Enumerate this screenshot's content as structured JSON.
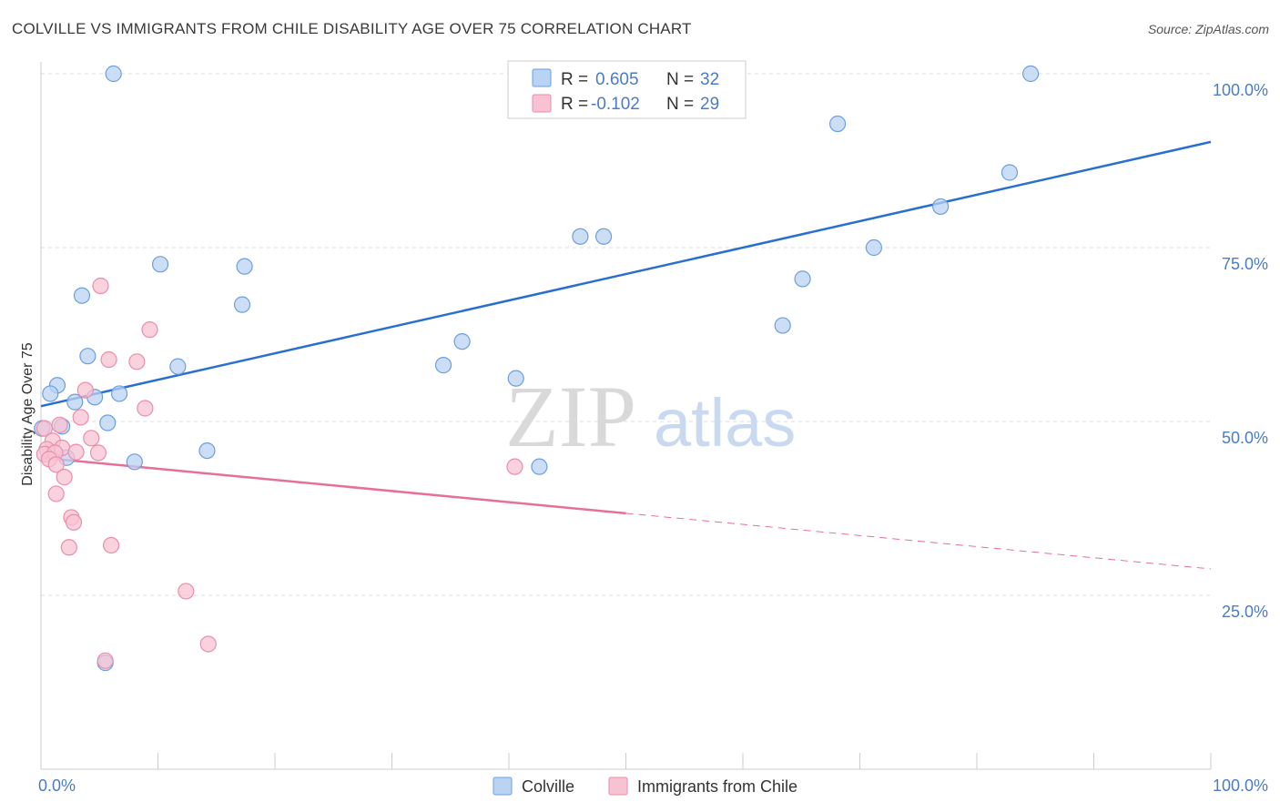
{
  "header": {
    "title": "COLVILLE VS IMMIGRANTS FROM CHILE DISABILITY AGE OVER 75 CORRELATION CHART",
    "source": "Source: ZipAtlas.com"
  },
  "watermark": {
    "zip": "ZIP",
    "atlas": "atlas"
  },
  "legend": {
    "rows": [
      {
        "r_label": "R =",
        "r_value": "0.605",
        "n_label": "N =",
        "n_value": "32"
      },
      {
        "r_label": "R =",
        "r_value": "-0.102",
        "n_label": "N =",
        "n_value": "29"
      }
    ]
  },
  "colors": {
    "blue_fill": "#b9d3f3",
    "blue_stroke": "#6c9fdc",
    "blue_line": "#2a6fcf",
    "pink_fill": "#f7c3d3",
    "pink_stroke": "#ea8eab",
    "pink_line": "#e5709a",
    "label_blue": "#4a7cc7",
    "grid": "#dddddd"
  },
  "chart_data": {
    "type": "scatter",
    "title": "COLVILLE VS IMMIGRANTS FROM CHILE DISABILITY AGE OVER 75 CORRELATION CHART",
    "xlabel": "",
    "ylabel": "Disability Age Over 75",
    "xlim": [
      0,
      100
    ],
    "ylim": [
      0,
      102.5
    ],
    "x_tick_labels": [
      "0.0%",
      "100.0%"
    ],
    "y_ticks": [
      25,
      50,
      75,
      100
    ],
    "y_tick_labels": [
      "25.0%",
      "50.0%",
      "75.0%",
      "100.0%"
    ],
    "grid": true,
    "legend_position": "top-center",
    "series": [
      {
        "name": "Colville",
        "color": "#b9d3f3",
        "points": [
          [
            6.2,
            100
          ],
          [
            84.6,
            100
          ],
          [
            68.1,
            92.8
          ],
          [
            82.8,
            85.8
          ],
          [
            76.9,
            80.9
          ],
          [
            46.1,
            76.6
          ],
          [
            48.1,
            76.6
          ],
          [
            71.2,
            75.0
          ],
          [
            10.2,
            72.6
          ],
          [
            17.4,
            72.3
          ],
          [
            65.1,
            70.5
          ],
          [
            3.5,
            68.1
          ],
          [
            17.2,
            66.8
          ],
          [
            63.4,
            63.8
          ],
          [
            36.0,
            61.5
          ],
          [
            4.0,
            59.4
          ],
          [
            11.7,
            57.9
          ],
          [
            34.4,
            58.1
          ],
          [
            40.6,
            56.2
          ],
          [
            1.4,
            55.2
          ],
          [
            0.8,
            54.0
          ],
          [
            6.7,
            54.0
          ],
          [
            4.6,
            53.5
          ],
          [
            2.9,
            52.8
          ],
          [
            5.7,
            49.8
          ],
          [
            0.1,
            49.0
          ],
          [
            1.8,
            49.3
          ],
          [
            14.2,
            45.8
          ],
          [
            2.2,
            44.8
          ],
          [
            8.0,
            44.2
          ],
          [
            42.6,
            43.5
          ],
          [
            5.5,
            15.3
          ]
        ]
      },
      {
        "name": "Immigrants from Chile",
        "color": "#f7c3d3",
        "points": [
          [
            5.1,
            69.5
          ],
          [
            9.3,
            63.2
          ],
          [
            5.8,
            58.9
          ],
          [
            8.2,
            58.6
          ],
          [
            3.8,
            54.5
          ],
          [
            8.9,
            51.9
          ],
          [
            3.4,
            50.6
          ],
          [
            1.6,
            49.5
          ],
          [
            0.3,
            49.0
          ],
          [
            1.0,
            47.2
          ],
          [
            4.3,
            47.6
          ],
          [
            1.8,
            46.2
          ],
          [
            0.5,
            46.0
          ],
          [
            0.3,
            45.3
          ],
          [
            1.2,
            45.5
          ],
          [
            3.0,
            45.6
          ],
          [
            4.9,
            45.5
          ],
          [
            0.7,
            44.6
          ],
          [
            1.3,
            43.8
          ],
          [
            40.5,
            43.5
          ],
          [
            2.0,
            42.0
          ],
          [
            1.3,
            39.6
          ],
          [
            2.6,
            36.2
          ],
          [
            2.8,
            35.5
          ],
          [
            2.4,
            31.9
          ],
          [
            6.0,
            32.2
          ],
          [
            12.4,
            25.6
          ],
          [
            14.3,
            18.0
          ],
          [
            5.5,
            15.6
          ]
        ]
      }
    ],
    "trendlines": [
      {
        "series": "Colville",
        "x": [
          0,
          100
        ],
        "y": [
          52.2,
          90.2
        ],
        "style": "solid"
      },
      {
        "series": "Immigrants from Chile",
        "solid_x": [
          0,
          50
        ],
        "solid_y": [
          44.8,
          36.8
        ],
        "dashed_x": [
          50,
          100
        ],
        "dashed_y": [
          36.8,
          28.8
        ]
      }
    ]
  }
}
